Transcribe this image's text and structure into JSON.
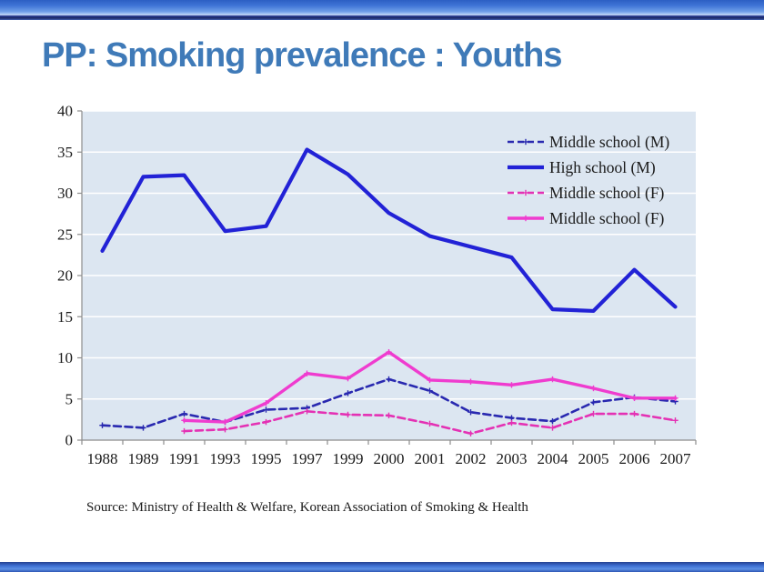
{
  "slide": {
    "title": "PP: Smoking prevalence : Youths",
    "source": "Source: Ministry of Health & Welfare, Korean Association of Smoking & Health"
  },
  "colors": {
    "title": "#3f7ab8",
    "plot_bg": "#dce6f1",
    "grid": "#ffffff",
    "axis": "#8c8c8c",
    "tick_label": "#1a1a1a"
  },
  "chart_data": {
    "type": "line",
    "title": "",
    "xlabel": "",
    "ylabel": "",
    "categories": [
      "1988",
      "1989",
      "1991",
      "1993",
      "1995",
      "1997",
      "1999",
      "2000",
      "2001",
      "2002",
      "2003",
      "2004",
      "2005",
      "2006",
      "2007"
    ],
    "ylim": [
      0,
      40
    ],
    "ytick_step": 5,
    "grid": true,
    "legend_position": "top-right-inside",
    "series": [
      {
        "name": "Middle school (M)",
        "color": "#2929b0",
        "style": "dashed",
        "width": 2.6,
        "markers": true,
        "values": [
          1.8,
          1.5,
          3.2,
          2.2,
          3.7,
          3.9,
          5.7,
          7.4,
          6.0,
          3.4,
          2.7,
          2.3,
          4.6,
          5.2,
          4.7
        ]
      },
      {
        "name": "High school (M)",
        "color": "#2222d6",
        "style": "solid",
        "width": 4.2,
        "markers": false,
        "values": [
          23.0,
          32.0,
          32.2,
          25.4,
          26.0,
          35.3,
          32.3,
          27.6,
          24.8,
          23.5,
          22.2,
          15.9,
          15.7,
          20.7,
          16.2
        ]
      },
      {
        "name": "Middle school (F)",
        "color": "#e431b4",
        "style": "dashed",
        "width": 2.6,
        "markers": true,
        "values": [
          null,
          null,
          1.1,
          1.3,
          2.2,
          3.5,
          3.1,
          3.0,
          2.0,
          0.8,
          2.1,
          1.5,
          3.2,
          3.2,
          2.4
        ]
      },
      {
        "name": "Middle school (F)",
        "color": "#ef3ccf",
        "style": "solid",
        "width": 3.4,
        "markers": true,
        "values": [
          null,
          null,
          2.4,
          2.2,
          4.5,
          8.1,
          7.5,
          10.7,
          7.3,
          7.1,
          6.7,
          7.4,
          6.3,
          5.1,
          5.1
        ]
      }
    ]
  }
}
